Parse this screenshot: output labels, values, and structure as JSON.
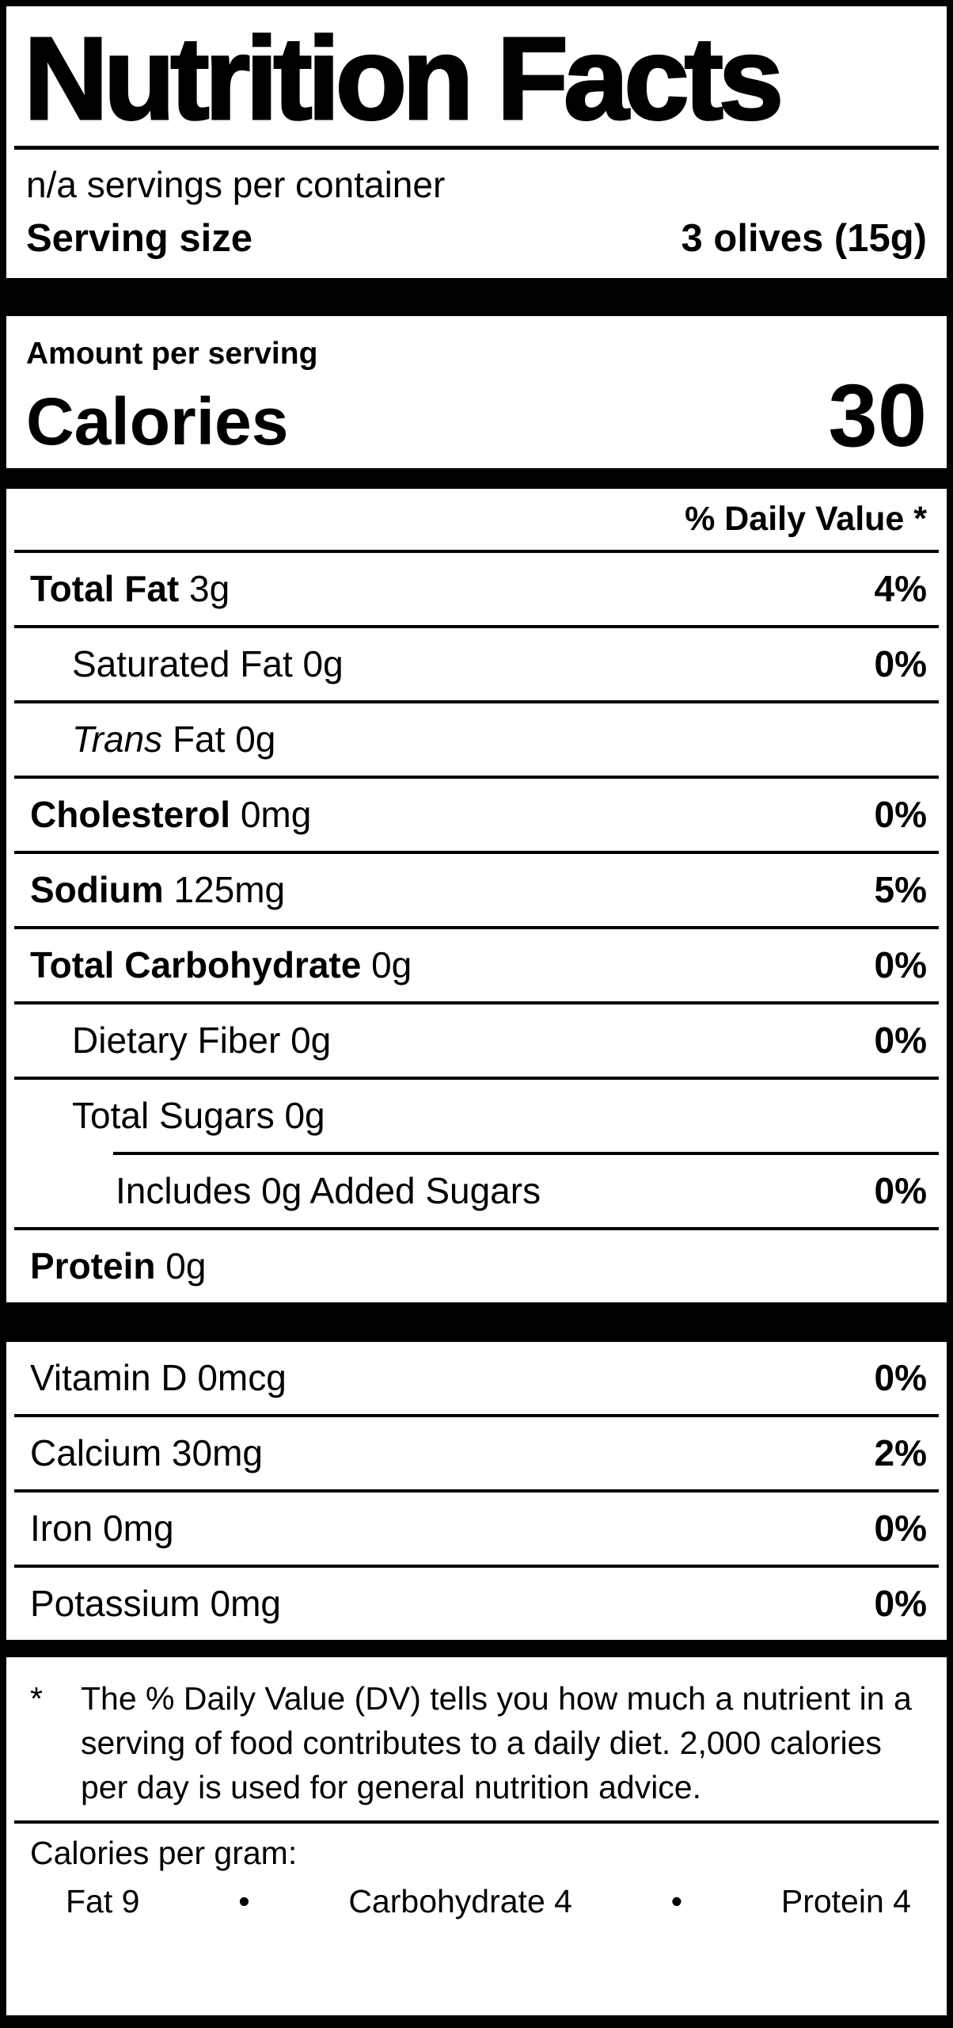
{
  "label": {
    "title": "Nutrition Facts",
    "servings_per_container": "n/a servings per container",
    "serving_size": {
      "label": "Serving size",
      "value": "3 olives (15g)"
    },
    "amount_per_serving": "Amount per serving",
    "calories": {
      "label": "Calories",
      "value": "30"
    },
    "daily_value_header": "% Daily Value *",
    "macro_rows": [
      {
        "b": "Total Fat",
        "rest": " 3g",
        "dv": "4%"
      },
      {
        "rest": "Saturated Fat 0g",
        "dv": "0%"
      },
      {
        "i": "Trans",
        "rest": " Fat 0g",
        "dv": ""
      },
      {
        "b": "Cholesterol",
        "rest": " 0mg",
        "dv": "0%"
      },
      {
        "b": "Sodium",
        "rest": " 125mg",
        "dv": "5%"
      },
      {
        "b": "Total Carbohydrate",
        "rest": " 0g",
        "dv": "0%"
      },
      {
        "rest": "Dietary Fiber 0g",
        "dv": "0%"
      },
      {
        "rest": "Total Sugars 0g",
        "dv": ""
      },
      {
        "rest": "Includes 0g Added Sugars",
        "dv": "0%"
      },
      {
        "b": "Protein",
        "rest": " 0g",
        "dv": ""
      }
    ],
    "micro_rows": [
      {
        "text": "Vitamin D 0mcg",
        "dv": "0%"
      },
      {
        "text": "Calcium 30mg",
        "dv": "2%"
      },
      {
        "text": "Iron 0mg",
        "dv": "0%"
      },
      {
        "text": "Potassium 0mg",
        "dv": "0%"
      }
    ],
    "footnote": {
      "marker": "*",
      "text": "The % Daily Value (DV) tells you how much a nutrient in a serving of food contributes to a daily diet. 2,000 calories per day is used for general nutrition advice."
    },
    "calories_per_gram": {
      "label": "Calories per gram:",
      "bullet": "•",
      "items": [
        "Fat 9",
        "Carbohydrate 4",
        "Protein 4"
      ]
    },
    "colors": {
      "ink": "#000000",
      "paper": "#ffffff"
    }
  }
}
